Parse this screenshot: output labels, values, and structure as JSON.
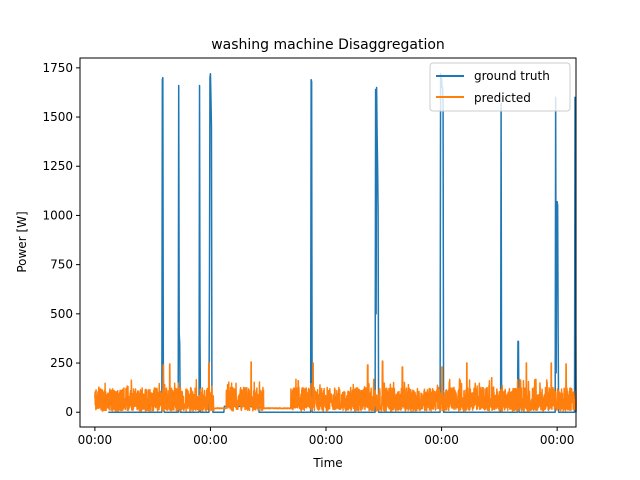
{
  "chart_data": {
    "type": "line",
    "title": "washing machine Disaggregation",
    "xlabel": "Time",
    "ylabel": "Power [W]",
    "xlim": [
      0,
      100
    ],
    "ylim": [
      -75,
      1800
    ],
    "x_ticks": [
      {
        "pos": 3.0,
        "label": "00:00"
      },
      {
        "pos": 26.3,
        "label": "00:00"
      },
      {
        "pos": 49.6,
        "label": "00:00"
      },
      {
        "pos": 72.9,
        "label": "00:00"
      },
      {
        "pos": 96.2,
        "label": "00:00"
      }
    ],
    "y_ticks": [
      0,
      250,
      500,
      750,
      1000,
      1250,
      1500,
      1750
    ],
    "legend": {
      "placement": "top-right"
    },
    "grid": false,
    "series": [
      {
        "name": "ground truth",
        "color": "#1f77b4",
        "points": [
          [
            5.7,
            0
          ],
          [
            16.5,
            0
          ],
          [
            16.6,
            1690
          ],
          [
            16.7,
            1700
          ],
          [
            16.8,
            200
          ],
          [
            16.9,
            10
          ],
          [
            17.0,
            0
          ],
          [
            19.8,
            0
          ],
          [
            19.9,
            1660
          ],
          [
            20.0,
            400
          ],
          [
            20.1,
            350
          ],
          [
            20.2,
            0
          ],
          [
            24.0,
            0
          ],
          [
            24.1,
            1660
          ],
          [
            24.2,
            350
          ],
          [
            24.3,
            0
          ],
          [
            26.0,
            0
          ],
          [
            26.1,
            650
          ],
          [
            26.2,
            1700
          ],
          [
            26.3,
            1720
          ],
          [
            26.4,
            1600
          ],
          [
            26.5,
            1450
          ],
          [
            26.6,
            50
          ],
          [
            26.8,
            0
          ],
          [
            29.0,
            0
          ],
          [
            29.1,
            30
          ],
          [
            36.0,
            30
          ],
          [
            36.1,
            0
          ],
          [
            46.5,
            0
          ],
          [
            46.6,
            1690
          ],
          [
            46.7,
            1680
          ],
          [
            46.8,
            0
          ],
          [
            59.5,
            0
          ],
          [
            59.6,
            1640
          ],
          [
            59.7,
            500
          ],
          [
            59.8,
            1650
          ],
          [
            59.9,
            1410
          ],
          [
            60.0,
            1250
          ],
          [
            60.1,
            1020
          ],
          [
            60.2,
            0
          ],
          [
            72.6,
            0
          ],
          [
            72.7,
            1720
          ],
          [
            72.8,
            1700
          ],
          [
            72.9,
            1690
          ],
          [
            73.0,
            1650
          ],
          [
            73.1,
            1650
          ],
          [
            73.2,
            1560
          ],
          [
            73.3,
            0
          ],
          [
            84.8,
            0
          ],
          [
            84.9,
            1570
          ],
          [
            85.0,
            0
          ],
          [
            88.2,
            0
          ],
          [
            88.3,
            360
          ],
          [
            88.4,
            360
          ],
          [
            88.5,
            0
          ],
          [
            95.8,
            0
          ],
          [
            95.9,
            1600
          ],
          [
            96.0,
            200
          ],
          [
            96.1,
            900
          ],
          [
            96.2,
            1070
          ],
          [
            96.3,
            1050
          ],
          [
            96.4,
            400
          ],
          [
            96.5,
            0
          ],
          [
            99.7,
            0
          ],
          [
            99.8,
            1600
          ],
          [
            99.9,
            800
          ],
          [
            100,
            0
          ]
        ]
      },
      {
        "name": "predicted",
        "color": "#ff7f0e",
        "base": 60,
        "gaps": [
          [
            27.0,
            29.5
          ],
          [
            37.0,
            42.5
          ]
        ],
        "gap_level": 20,
        "spikes": [
          [
            16.8,
            240
          ],
          [
            18.1,
            245
          ],
          [
            26.0,
            250
          ],
          [
            34.5,
            255
          ],
          [
            44.0,
            160
          ],
          [
            47.0,
            250
          ],
          [
            58.0,
            240
          ],
          [
            61.0,
            260
          ],
          [
            65.0,
            230
          ],
          [
            73.0,
            230
          ],
          [
            78.0,
            250
          ],
          [
            83.0,
            175
          ],
          [
            90.0,
            250
          ],
          [
            95.0,
            250
          ],
          [
            98.0,
            245
          ]
        ]
      }
    ]
  }
}
